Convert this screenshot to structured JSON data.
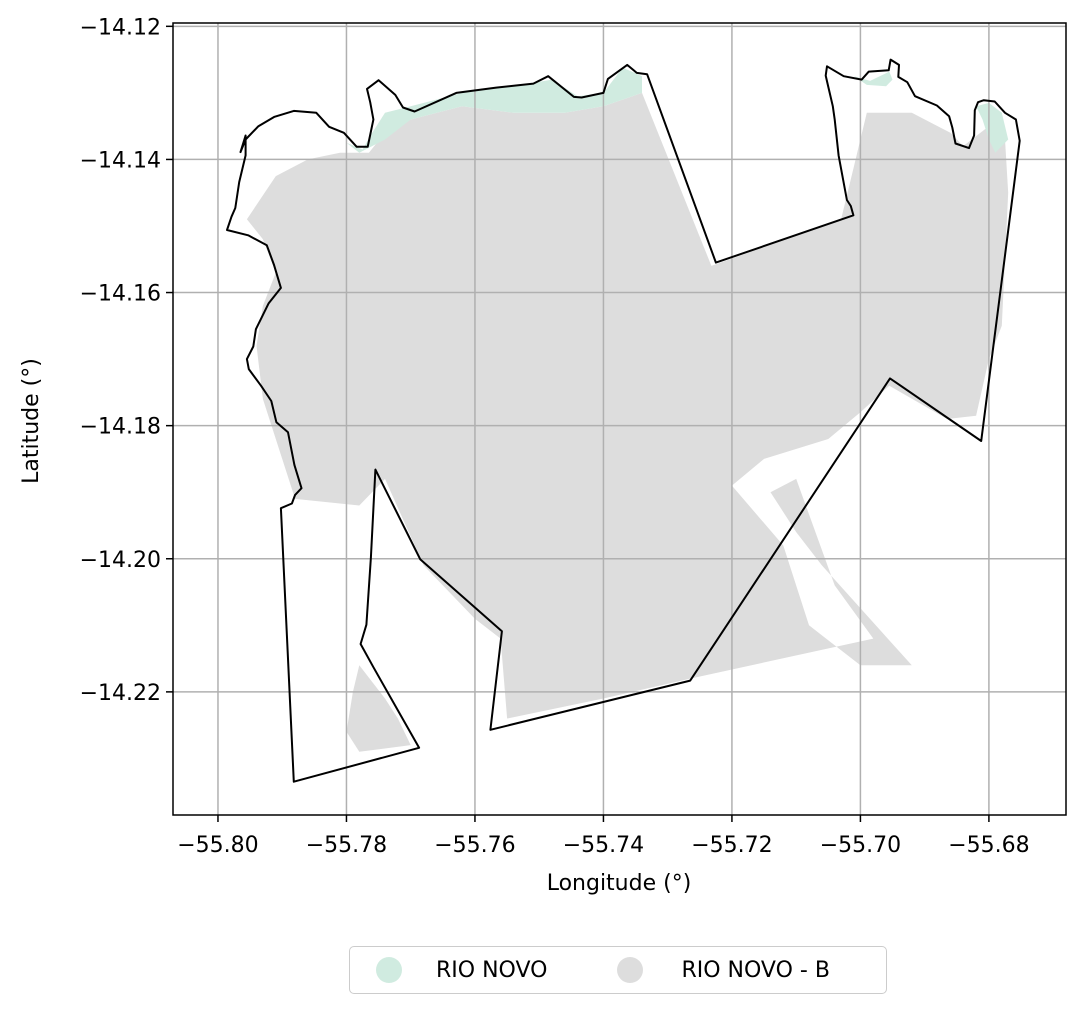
{
  "chart_data": {
    "type": "map",
    "xlabel": "Longitude (°)",
    "ylabel": "Latitude (°)",
    "xlim": [
      -55.807,
      -55.668
    ],
    "ylim": [
      -14.2385,
      -14.1195
    ],
    "x_ticks": [
      -55.8,
      -55.78,
      -55.76,
      -55.74,
      -55.72,
      -55.7,
      -55.68
    ],
    "x_tick_labels": [
      "−55.80",
      "−55.78",
      "−55.76",
      "−55.74",
      "−55.72",
      "−55.70",
      "−55.68"
    ],
    "y_ticks": [
      -14.12,
      -14.14,
      -14.16,
      -14.18,
      -14.2,
      -14.22
    ],
    "y_tick_labels": [
      "−14.12",
      "−14.14",
      "−14.16",
      "−14.18",
      "−14.20",
      "−14.22"
    ],
    "grid": true,
    "legend_position": "bottom-center",
    "legend": [
      {
        "label": "RIO NOVO",
        "color": "#d0ebe0"
      },
      {
        "label": "RIO NOVO - B",
        "color": "#dddddd"
      }
    ],
    "boundary_color": "#000000",
    "boundary": [
      [
        -55.7986,
        -14.1506
      ],
      [
        -55.7979,
        -14.1486
      ],
      [
        -55.7973,
        -14.1473
      ],
      [
        -55.7967,
        -14.1434
      ],
      [
        -55.7957,
        -14.1394
      ],
      [
        -55.7957,
        -14.1364
      ],
      [
        -55.7965,
        -14.1389
      ],
      [
        -55.7957,
        -14.137
      ],
      [
        -55.7937,
        -14.135
      ],
      [
        -55.7912,
        -14.1336
      ],
      [
        -55.7882,
        -14.1327
      ],
      [
        -55.7847,
        -14.133
      ],
      [
        -55.7827,
        -14.1351
      ],
      [
        -55.7804,
        -14.136
      ],
      [
        -55.7784,
        -14.1381
      ],
      [
        -55.7767,
        -14.1381
      ],
      [
        -55.7758,
        -14.134
      ],
      [
        -55.7763,
        -14.1314
      ],
      [
        -55.7768,
        -14.1294
      ],
      [
        -55.775,
        -14.1281
      ],
      [
        -55.7724,
        -14.1303
      ],
      [
        -55.7712,
        -14.1322
      ],
      [
        -55.7694,
        -14.1328
      ],
      [
        -55.7629,
        -14.13
      ],
      [
        -55.7567,
        -14.1292
      ],
      [
        -55.7538,
        -14.1289
      ],
      [
        -55.7509,
        -14.1286
      ],
      [
        -55.7486,
        -14.1275
      ],
      [
        -55.7446,
        -14.1306
      ],
      [
        -55.7434,
        -14.1307
      ],
      [
        -55.74,
        -14.13
      ],
      [
        -55.7393,
        -14.1279
      ],
      [
        -55.7363,
        -14.1258
      ],
      [
        -55.7348,
        -14.127
      ],
      [
        -55.7332,
        -14.1272
      ],
      [
        -55.7225,
        -14.1555
      ],
      [
        -55.7011,
        -14.1484
      ],
      [
        -55.7015,
        -14.147
      ],
      [
        -55.7021,
        -14.1461
      ],
      [
        -55.7034,
        -14.1394
      ],
      [
        -55.704,
        -14.134
      ],
      [
        -55.7043,
        -14.132
      ],
      [
        -55.705,
        -14.1291
      ],
      [
        -55.7054,
        -14.1274
      ],
      [
        -55.7052,
        -14.126
      ],
      [
        -55.7026,
        -14.1275
      ],
      [
        -55.6998,
        -14.128
      ],
      [
        -55.6987,
        -14.1268
      ],
      [
        -55.6956,
        -14.1266
      ],
      [
        -55.6953,
        -14.125
      ],
      [
        -55.694,
        -14.1258
      ],
      [
        -55.6941,
        -14.1276
      ],
      [
        -55.6927,
        -14.1284
      ],
      [
        -55.6915,
        -14.1305
      ],
      [
        -55.6881,
        -14.1319
      ],
      [
        -55.6862,
        -14.1335
      ],
      [
        -55.6857,
        -14.1352
      ],
      [
        -55.6852,
        -14.1376
      ],
      [
        -55.6831,
        -14.1383
      ],
      [
        -55.6823,
        -14.1364
      ],
      [
        -55.6822,
        -14.1326
      ],
      [
        -55.6817,
        -14.1314
      ],
      [
        -55.6808,
        -14.1311
      ],
      [
        -55.6791,
        -14.1313
      ],
      [
        -55.6775,
        -14.133
      ],
      [
        -55.6758,
        -14.134
      ],
      [
        -55.6752,
        -14.1372
      ],
      [
        -55.6812,
        -14.1823
      ],
      [
        -55.6954,
        -14.1729
      ],
      [
        -55.7265,
        -14.2183
      ],
      [
        -55.7576,
        -14.2257
      ],
      [
        -55.7558,
        -14.2109
      ],
      [
        -55.7685,
        -14.2001
      ],
      [
        -55.7755,
        -14.1866
      ],
      [
        -55.7762,
        -14.1998
      ],
      [
        -55.7769,
        -14.2099
      ],
      [
        -55.7778,
        -14.2128
      ],
      [
        -55.7758,
        -14.2163
      ],
      [
        -55.7687,
        -14.2284
      ],
      [
        -55.7882,
        -14.2335
      ],
      [
        -55.7902,
        -14.1924
      ],
      [
        -55.7885,
        -14.1917
      ],
      [
        -55.788,
        -14.1904
      ],
      [
        -55.787,
        -14.1894
      ],
      [
        -55.7881,
        -14.1859
      ],
      [
        -55.7891,
        -14.181
      ],
      [
        -55.7909,
        -14.1795
      ],
      [
        -55.7917,
        -14.1763
      ],
      [
        -55.7933,
        -14.174
      ],
      [
        -55.7952,
        -14.1715
      ],
      [
        -55.7955,
        -14.17
      ],
      [
        -55.7945,
        -14.1681
      ],
      [
        -55.7941,
        -14.1655
      ],
      [
        -55.7921,
        -14.1616
      ],
      [
        -55.7902,
        -14.1593
      ],
      [
        -55.7913,
        -14.1558
      ],
      [
        -55.7924,
        -14.1529
      ],
      [
        -55.7953,
        -14.1514
      ],
      [
        -55.7986,
        -14.1506
      ]
    ],
    "regions": [
      {
        "name": "RIO NOVO - B",
        "color": "#dddddd",
        "polygons": [
          [
            [
              -55.7955,
              -14.149
            ],
            [
              -55.791,
              -14.1425
            ],
            [
              -55.786,
              -14.14
            ],
            [
              -55.781,
              -14.139
            ],
            [
              -55.7765,
              -14.139
            ],
            [
              -55.774,
              -14.136
            ],
            [
              -55.77,
              -14.134
            ],
            [
              -55.762,
              -14.132
            ],
            [
              -55.754,
              -14.133
            ],
            [
              -55.746,
              -14.133
            ],
            [
              -55.74,
              -14.132
            ],
            [
              -55.734,
              -14.13
            ],
            [
              -55.7232,
              -14.156
            ],
            [
              -55.703,
              -14.149
            ],
            [
              -55.701,
              -14.141
            ],
            [
              -55.699,
              -14.133
            ],
            [
              -55.692,
              -14.133
            ],
            [
              -55.686,
              -14.136
            ],
            [
              -55.684,
              -14.138
            ],
            [
              -55.68,
              -14.135
            ],
            [
              -55.6775,
              -14.137
            ],
            [
              -55.677,
              -14.145
            ],
            [
              -55.6775,
              -14.155
            ],
            [
              -55.678,
              -14.165
            ],
            [
              -55.68,
              -14.17
            ],
            [
              -55.682,
              -14.1785
            ],
            [
              -55.6865,
              -14.179
            ],
            [
              -55.6955,
              -14.174
            ],
            [
              -55.7,
              -14.178
            ],
            [
              -55.705,
              -14.182
            ],
            [
              -55.715,
              -14.185
            ],
            [
              -55.72,
              -14.189
            ],
            [
              -55.712,
              -14.198
            ],
            [
              -55.708,
              -14.21
            ],
            [
              -55.7,
              -14.216
            ],
            [
              -55.692,
              -14.216
            ],
            [
              -55.706,
              -14.201
            ],
            [
              -55.71,
              -14.196
            ],
            [
              -55.714,
              -14.19
            ],
            [
              -55.71,
              -14.188
            ],
            [
              -55.704,
              -14.204
            ],
            [
              -55.698,
              -14.212
            ],
            [
              -55.7265,
              -14.218
            ],
            [
              -55.74,
              -14.221
            ],
            [
              -55.755,
              -14.224
            ],
            [
              -55.756,
              -14.212
            ],
            [
              -55.76,
              -14.209
            ],
            [
              -55.768,
              -14.201
            ],
            [
              -55.774,
              -14.188
            ],
            [
              -55.778,
              -14.192
            ],
            [
              -55.788,
              -14.191
            ],
            [
              -55.79,
              -14.185
            ],
            [
              -55.793,
              -14.176
            ],
            [
              -55.794,
              -14.168
            ],
            [
              -55.793,
              -14.162
            ],
            [
              -55.791,
              -14.157
            ],
            [
              -55.793,
              -14.152
            ]
          ],
          [
            [
              -55.778,
              -14.216
            ],
            [
              -55.774,
              -14.221
            ],
            [
              -55.772,
              -14.224
            ],
            [
              -55.77,
              -14.228
            ],
            [
              -55.778,
              -14.229
            ],
            [
              -55.78,
              -14.226
            ],
            [
              -55.779,
              -14.22
            ]
          ]
        ]
      },
      {
        "name": "RIO NOVO",
        "color": "#d0ebe0",
        "polygons": [
          [
            [
              -55.78,
              -14.1375
            ],
            [
              -55.7775,
              -14.1385
            ],
            [
              -55.776,
              -14.136
            ],
            [
              -55.774,
              -14.133
            ],
            [
              -55.77,
              -14.132
            ],
            [
              -55.76,
              -14.1295
            ],
            [
              -55.754,
              -14.129
            ],
            [
              -55.748,
              -14.128
            ],
            [
              -55.744,
              -14.1305
            ],
            [
              -55.74,
              -14.13
            ],
            [
              -55.737,
              -14.1262
            ],
            [
              -55.734,
              -14.1275
            ],
            [
              -55.734,
              -14.13
            ],
            [
              -55.74,
              -14.132
            ],
            [
              -55.746,
              -14.133
            ],
            [
              -55.754,
              -14.133
            ],
            [
              -55.762,
              -14.132
            ],
            [
              -55.77,
              -14.134
            ],
            [
              -55.774,
              -14.137
            ],
            [
              -55.778,
              -14.139
            ]
          ],
          [
            [
              -55.701,
              -14.1275
            ],
            [
              -55.6985,
              -14.1282
            ],
            [
              -55.6955,
              -14.1268
            ],
            [
              -55.695,
              -14.128
            ],
            [
              -55.696,
              -14.129
            ],
            [
              -55.699,
              -14.1288
            ]
          ],
          [
            [
              -55.682,
              -14.132
            ],
            [
              -55.681,
              -14.134
            ],
            [
              -55.68,
              -14.137
            ],
            [
              -55.679,
              -14.139
            ],
            [
              -55.677,
              -14.137
            ],
            [
              -55.678,
              -14.133
            ],
            [
              -55.68,
              -14.1315
            ]
          ]
        ]
      }
    ]
  }
}
